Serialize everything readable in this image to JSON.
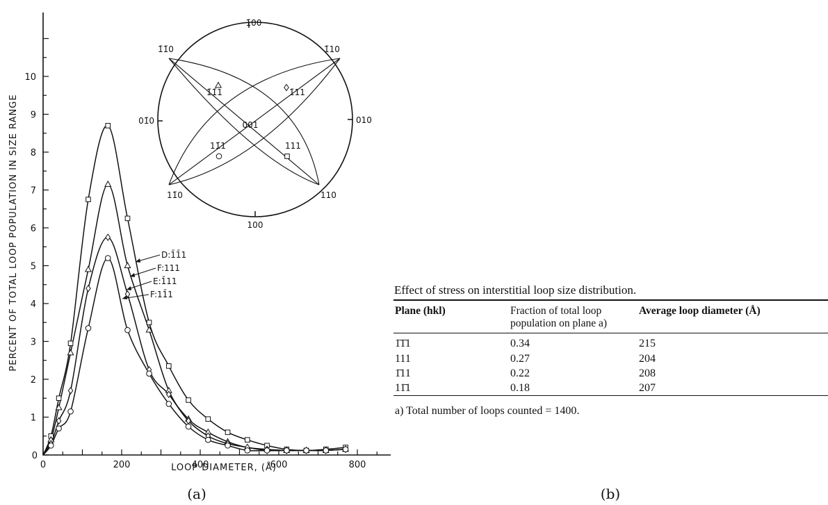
{
  "chart_data": {
    "type": "line",
    "xlabel": "LOOP DIAMETER, (Å)",
    "ylabel": "PERCENT OF TOTAL LOOP POPULATION IN SIZE RANGE",
    "xlim": [
      0,
      900
    ],
    "ylim": [
      0,
      11
    ],
    "x_ticks": [
      0,
      200,
      400,
      600,
      800
    ],
    "y_ticks": [
      1,
      2,
      3,
      4,
      5,
      6,
      7,
      8,
      9,
      10
    ],
    "grid": false,
    "legend_position": "center-left, curve labels with arrows",
    "x": [
      20,
      40,
      70,
      115,
      165,
      215,
      270,
      320,
      370,
      420,
      470,
      520,
      570,
      620,
      670,
      720,
      770
    ],
    "series": [
      {
        "name": "D:1̄1̄1",
        "marker": "square",
        "values": [
          0.5,
          1.5,
          2.95,
          6.75,
          8.7,
          6.25,
          3.5,
          2.35,
          1.45,
          0.95,
          0.6,
          0.4,
          0.25,
          0.15,
          0.12,
          0.15,
          0.2
        ]
      },
      {
        "name": "F:111",
        "marker": "triangle",
        "values": [
          0.4,
          1.25,
          2.7,
          4.9,
          7.15,
          5.0,
          3.3,
          1.7,
          0.95,
          0.6,
          0.35,
          0.2,
          0.15,
          0.12,
          0.12,
          0.12,
          0.15
        ]
      },
      {
        "name": "E:1̄11",
        "marker": "diamond",
        "values": [
          0.3,
          0.9,
          1.7,
          4.4,
          5.75,
          4.25,
          2.25,
          1.6,
          0.9,
          0.5,
          0.3,
          0.2,
          0.12,
          0.12,
          0.12,
          0.12,
          0.15
        ]
      },
      {
        "name": "F:11̄1",
        "marker": "circle",
        "values": [
          0.25,
          0.7,
          1.15,
          3.35,
          5.2,
          3.3,
          2.15,
          1.35,
          0.75,
          0.4,
          0.25,
          0.12,
          0.12,
          0.12,
          0.12,
          0.12,
          0.15
        ]
      }
    ],
    "colors": {
      "ink": "#111111"
    }
  },
  "stereogram": {
    "top": "1̄00",
    "bottom": "100",
    "left": "01̄0",
    "right": "010",
    "upper_left": "1̄1̄0",
    "upper_right": "1̄10",
    "lower_left": "11̄0",
    "lower_right": "110",
    "center": "001",
    "poles": {
      "d": "1̄1̄1",
      "e": "1̄11",
      "f": "11̄1",
      "g": "111"
    }
  },
  "captions": {
    "left": "(a)",
    "right": "(b)"
  },
  "table": {
    "title": "Effect of stress on interstitial loop size distribution.",
    "headers": [
      "Plane (hkl)",
      "Fraction of total loop population on plane a)",
      "Average loop diameter (Å)"
    ],
    "rows": [
      {
        "plane": "1̄1̄1",
        "fraction": "0.34",
        "diameter": "215"
      },
      {
        "plane": "111",
        "fraction": "0.27",
        "diameter": "204"
      },
      {
        "plane": "1̄11",
        "fraction": "0.22",
        "diameter": "208"
      },
      {
        "plane": "11̄1",
        "fraction": "0.18",
        "diameter": "207"
      }
    ],
    "footnote": "a) Total number of loops counted = 1400."
  }
}
